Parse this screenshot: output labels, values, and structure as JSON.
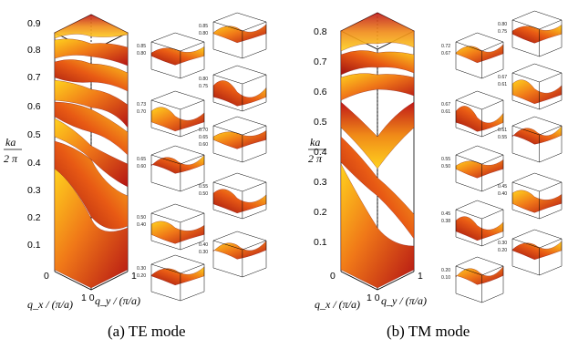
{
  "figure_a": {
    "caption": "(a) TE mode",
    "y_ticks": [
      "0.9",
      "0.8",
      "0.7",
      "0.6",
      "0.5",
      "0.4",
      "0.3",
      "0.2",
      "0.1"
    ],
    "zero_label": "0",
    "corner_label": "1 0",
    "x_label": "q_x / (π/a)",
    "y_label": "q_y / (π/a)",
    "one_label": "1",
    "freq_label_num": "ka",
    "freq_label_den": "2 π",
    "insets_left": [
      {
        "ticks": [
          "0.85",
          "0.80"
        ]
      },
      {
        "ticks": [
          "0.73",
          "0.70"
        ]
      },
      {
        "ticks": [
          "0.65",
          "0.60"
        ]
      },
      {
        "ticks": [
          "0.50",
          "0.40"
        ]
      },
      {
        "ticks": [
          "0.30",
          "0.20"
        ]
      }
    ],
    "insets_right": [
      {
        "ticks": [
          "0.85",
          "0.80"
        ]
      },
      {
        "ticks": [
          "0.80",
          "0.75"
        ]
      },
      {
        "ticks": [
          "0.70",
          "0.65",
          "0.60"
        ]
      },
      {
        "ticks": [
          "0.55",
          "0.50"
        ]
      },
      {
        "ticks": [
          "0.40",
          "0.30"
        ]
      }
    ]
  },
  "figure_b": {
    "caption": "(b) TM mode",
    "y_ticks": [
      "0.8",
      "0.7",
      "0.6",
      "0.5",
      "0.4",
      "0.3",
      "0.2",
      "0.1"
    ],
    "zero_label": "0",
    "corner_label": "1 0",
    "x_label": "q_x / (π/a)",
    "y_label": "q_y / (π/a)",
    "one_label": "1",
    "freq_label_num": "ka",
    "freq_label_den": "2 π",
    "insets_left": [
      {
        "ticks": [
          "0.72",
          "0.67"
        ]
      },
      {
        "ticks": [
          "0.67",
          "0.61"
        ]
      },
      {
        "ticks": [
          "0.55",
          "0.50"
        ]
      },
      {
        "ticks": [
          "0.45",
          "0.38"
        ]
      },
      {
        "ticks": [
          "0.20",
          "0.10"
        ]
      }
    ],
    "insets_right": [
      {
        "ticks": [
          "0.80",
          "0.75"
        ]
      },
      {
        "ticks": [
          "0.67",
          "0.61"
        ]
      },
      {
        "ticks": [
          "0.61",
          "0.55"
        ]
      },
      {
        "ticks": [
          "0.45",
          "0.40"
        ]
      },
      {
        "ticks": [
          "0.30",
          "0.20"
        ]
      }
    ]
  },
  "colors": {
    "surface_bright": "#ffd21e",
    "surface_mid": "#f07818",
    "surface_dark": "#b41414",
    "box_line": "#000000"
  }
}
